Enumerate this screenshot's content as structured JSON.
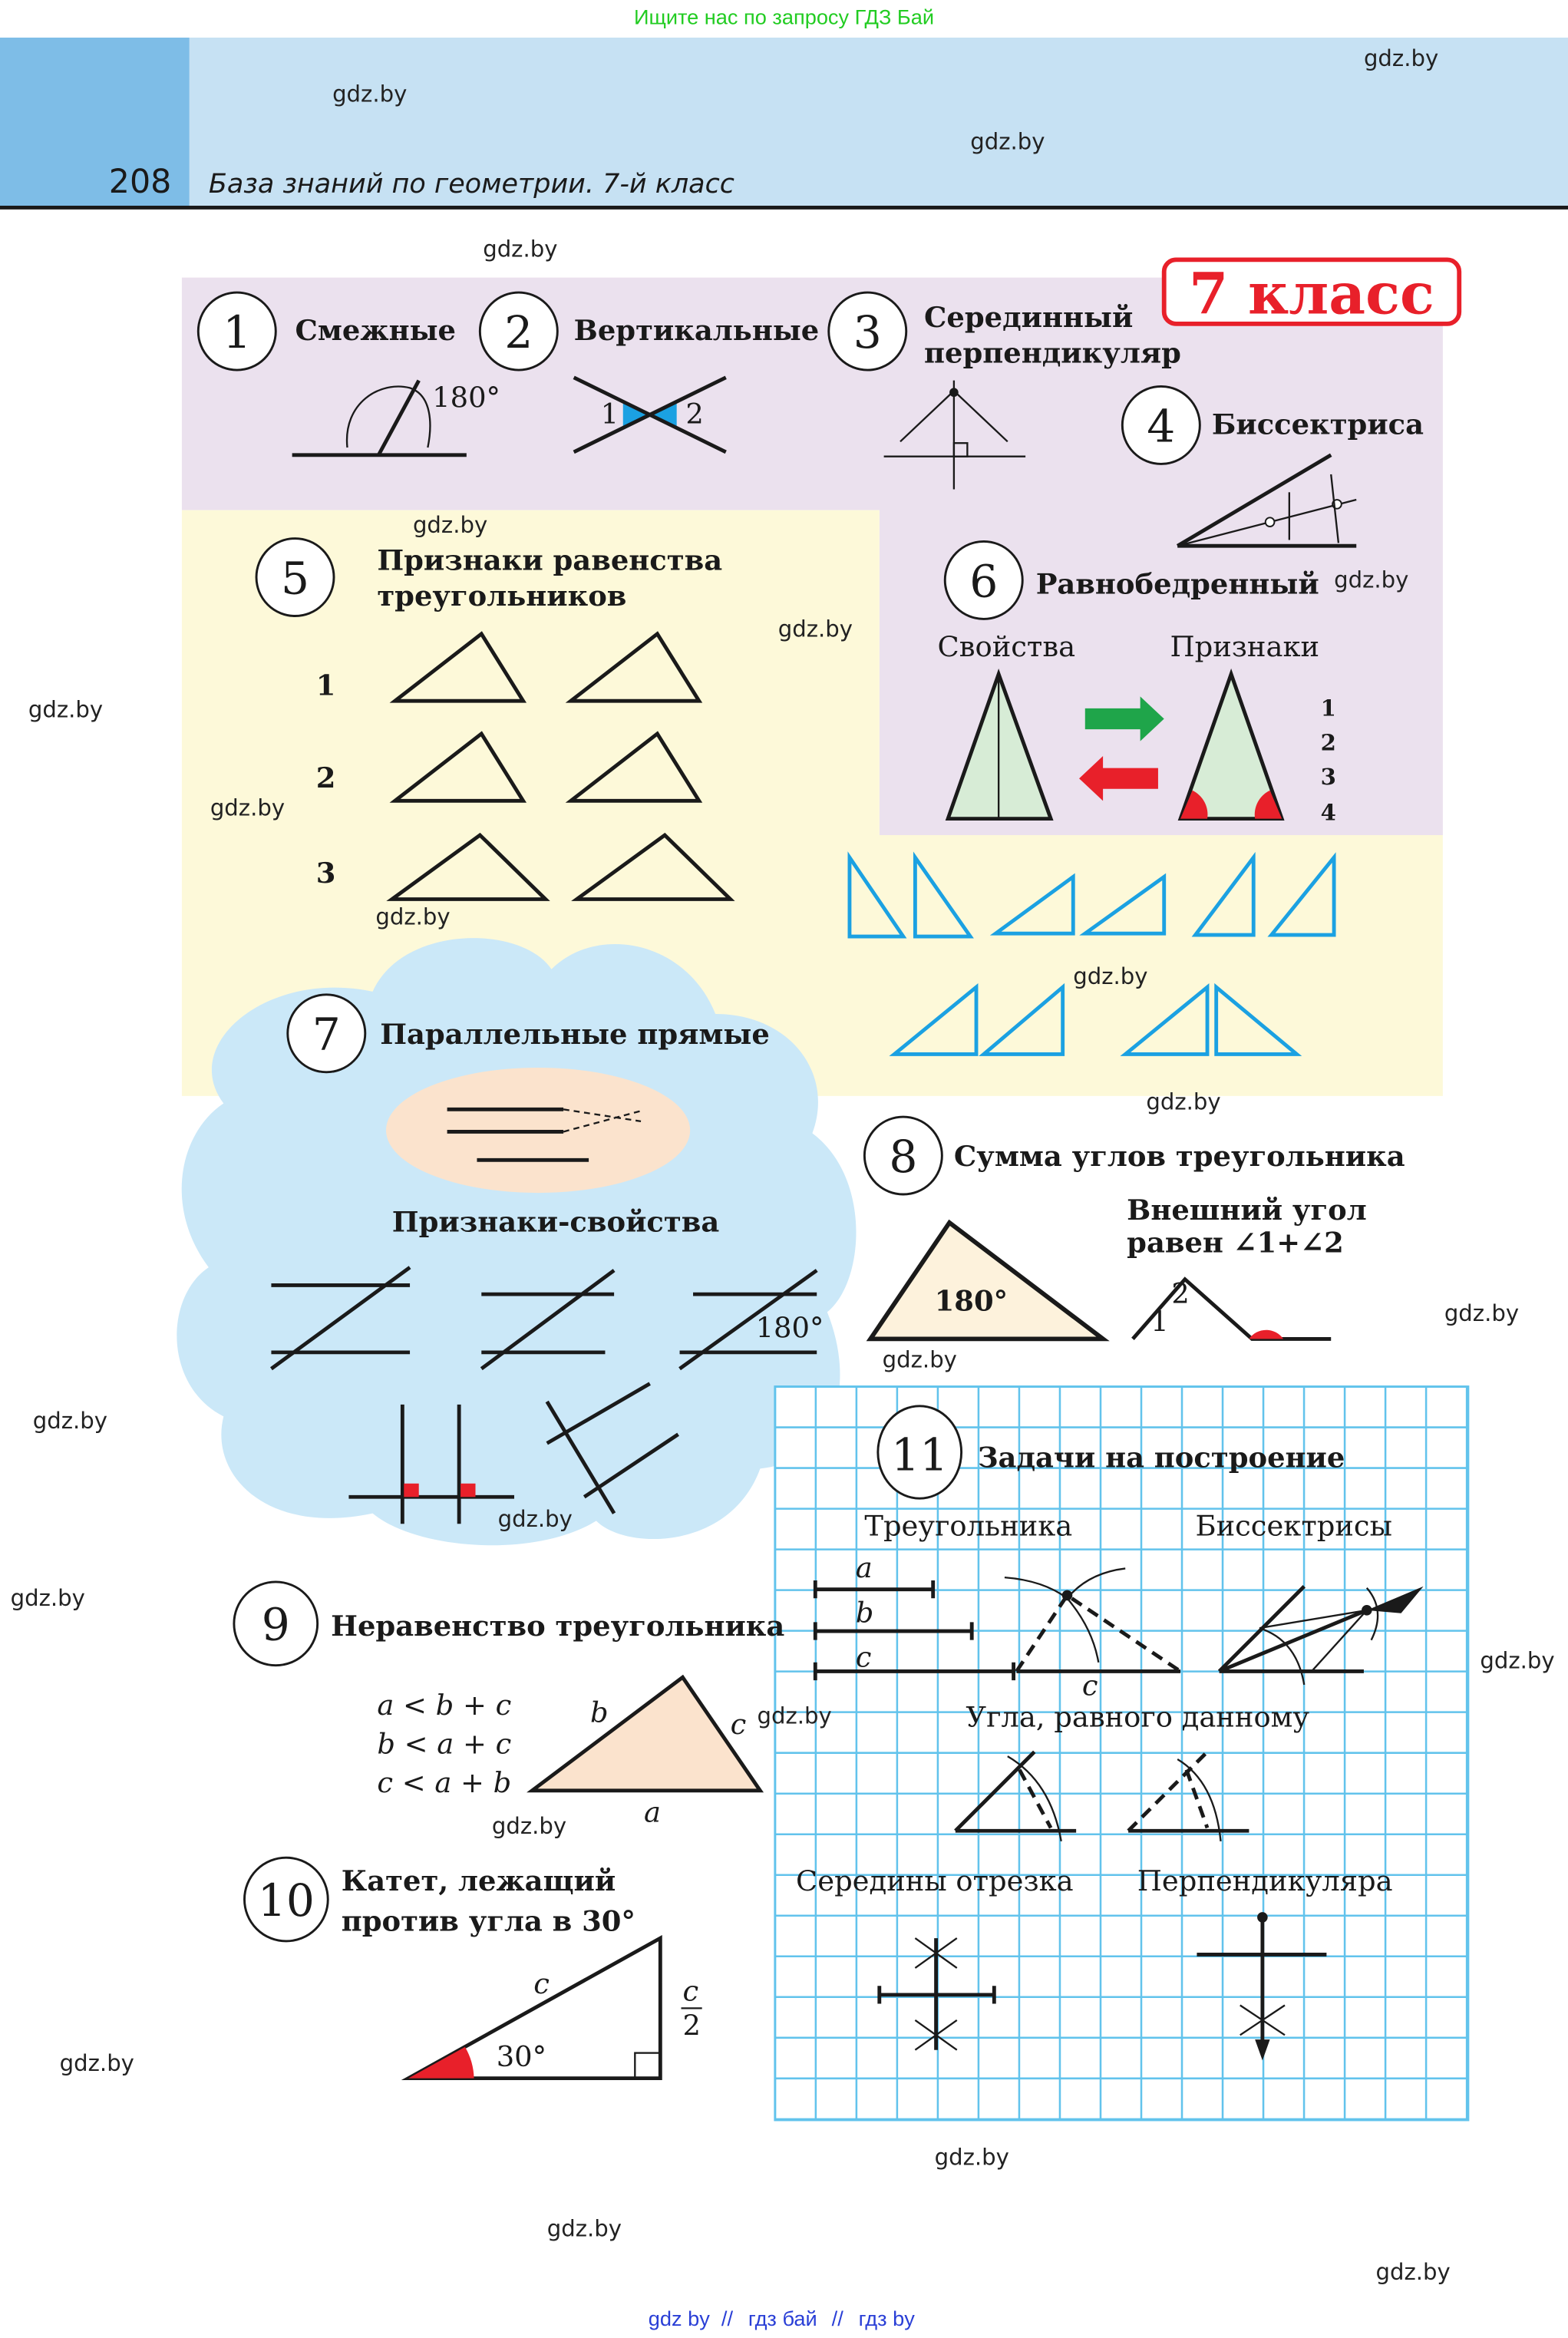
{
  "banner": {
    "text": "Ищите нас по запросу ГДЗ Бай",
    "color": "#22cc22"
  },
  "header": {
    "page_number": "208",
    "title": "База знаний по геометрии. 7-й класс"
  },
  "grade_badge": "7 класс",
  "watermark": "gdz.by",
  "sections": {
    "s1": {
      "num": "1",
      "title": "Смежные",
      "angle": "180°"
    },
    "s2": {
      "num": "2",
      "title": "Вертикальные",
      "l1": "1",
      "l2": "2"
    },
    "s3": {
      "num": "3",
      "title_1": "Серединный",
      "title_2": "перпендикуляр"
    },
    "s4": {
      "num": "4",
      "title": "Биссектриса"
    },
    "s5": {
      "num": "5",
      "title_1": "Признаки равенства",
      "title_2": "треугольников",
      "rows": [
        "1",
        "2",
        "3"
      ]
    },
    "s6": {
      "num": "6",
      "title": "Равнобедренный",
      "properties": "Свойства",
      "signs": "Признаки",
      "list": [
        "1",
        "2",
        "3",
        "4"
      ]
    },
    "s7": {
      "num": "7",
      "title": "Параллельные прямые",
      "subtitle": "Признаки-свойства",
      "angle": "180°"
    },
    "s8": {
      "num": "8",
      "title": "Сумма углов треугольника",
      "angle": "180°",
      "ext_1": "Внешний угол",
      "ext_2": "равен  ∠1+∠2",
      "l1": "1",
      "l2": "2"
    },
    "s9": {
      "num": "9",
      "title": "Неравенство треугольника",
      "ineq": [
        "a < b + c",
        "b < a + c",
        "c < a + b"
      ],
      "a": "a",
      "b": "b",
      "c": "c"
    },
    "s10": {
      "num": "10",
      "title_1": "Катет, лежащий",
      "title_2": "против угла в 30°",
      "angle": "30°",
      "c": "c",
      "half_num": "c",
      "half_den": "2"
    },
    "s11": {
      "num": "11",
      "title": "Задачи на построение",
      "triangle": "Треугольника",
      "bisector": "Биссектрисы",
      "equal_angle": "Угла, равного данному",
      "midpoint": "Середины отрезка",
      "perpendicular": "Перпендикуляра",
      "a": "a",
      "b": "b",
      "c": "c"
    }
  },
  "footer": {
    "links": [
      "gdz by",
      "гдз бай",
      "гдз by"
    ],
    "sep": "//"
  },
  "colors": {
    "purple": "#ebe1ee",
    "yellow": "#fdf9d9",
    "cloud": "#cbe8f8",
    "grid": "#62c3ec",
    "red": "#e8202a",
    "green": "#1fa54a",
    "blue": "#1ba1e2",
    "orange": "#f7c35a"
  }
}
